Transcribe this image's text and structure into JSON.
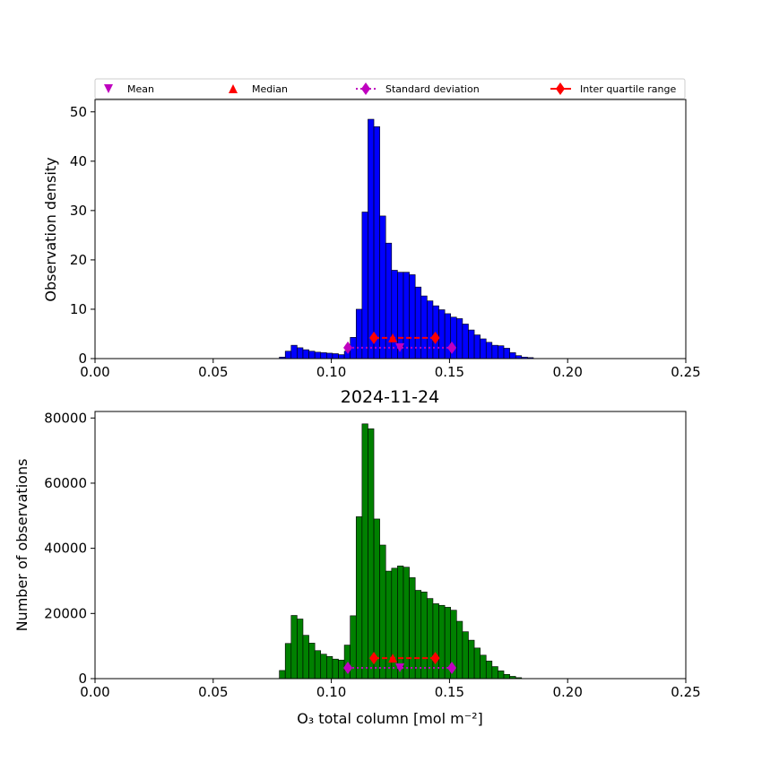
{
  "legend": {
    "items": [
      {
        "label": "Mean",
        "marker": "triangle-down",
        "color": "#bf00bf"
      },
      {
        "label": "Median",
        "marker": "triangle-up",
        "color": "#ff0000"
      },
      {
        "label": "Standard deviation",
        "marker": "diamond-dotted",
        "color": "#bf00bf"
      },
      {
        "label": "Inter quartile range",
        "marker": "diamond-dashed",
        "color": "#ff0000"
      }
    ]
  },
  "chart_data": [
    {
      "type": "bar",
      "title": "",
      "xlabel": "",
      "ylabel": "Observation density",
      "xlim": [
        0,
        0.25
      ],
      "ylim": [
        0,
        52.5
      ],
      "xticks": [
        "0.00",
        "0.05",
        "0.10",
        "0.15",
        "0.20",
        "0.25"
      ],
      "yticks": [
        "0",
        "10",
        "20",
        "30",
        "40",
        "50"
      ],
      "bar_color": "#0000ff",
      "bin_start": 0.078,
      "bin_width": 0.0025,
      "values": [
        0.3,
        1.5,
        2.7,
        2.2,
        1.8,
        1.5,
        1.3,
        1.2,
        1.1,
        1.0,
        0.8,
        1.5,
        4.3,
        10.0,
        29.7,
        48.5,
        47.0,
        28.9,
        23.4,
        17.9,
        17.5,
        17.5,
        17.0,
        14.5,
        12.7,
        11.7,
        10.7,
        9.9,
        9.1,
        8.4,
        8.1,
        7.0,
        5.8,
        4.8,
        4.0,
        3.3,
        2.7,
        2.6,
        2.1,
        1.2,
        0.6,
        0.3,
        0.2
      ],
      "stats": {
        "mean": 0.129,
        "median": 0.126,
        "std_range": [
          0.107,
          0.151
        ],
        "iqr": [
          0.118,
          0.144
        ]
      },
      "stat_y": {
        "mean": 2.2,
        "median": 4.2,
        "std": 2.2,
        "iqr": 4.2
      }
    },
    {
      "type": "bar",
      "title": "2024-11-24",
      "xlabel": "O₃ total column [mol m⁻²]",
      "ylabel": "Number of observations",
      "xlim": [
        0,
        0.25
      ],
      "ylim": [
        0,
        82000
      ],
      "xticks": [
        "0.00",
        "0.05",
        "0.10",
        "0.15",
        "0.20",
        "0.25"
      ],
      "yticks": [
        "0",
        "20000",
        "40000",
        "60000",
        "80000"
      ],
      "bar_color": "#008000",
      "bin_start": 0.078,
      "bin_width": 0.0025,
      "values": [
        2500,
        10800,
        19400,
        18300,
        13300,
        10900,
        8600,
        7500,
        6800,
        6000,
        5700,
        10300,
        19300,
        49700,
        78200,
        76700,
        49000,
        41000,
        33000,
        33900,
        34600,
        34200,
        31000,
        27100,
        26600,
        24600,
        23000,
        22500,
        21900,
        21000,
        17600,
        14400,
        11800,
        9400,
        7200,
        5400,
        3700,
        2400,
        1300,
        700,
        300
      ],
      "stats": {
        "mean": 0.129,
        "median": 0.126,
        "std_range": [
          0.107,
          0.151
        ],
        "iqr": [
          0.118,
          0.144
        ]
      },
      "stat_y": {
        "mean": 3300,
        "median": 6300,
        "std": 3300,
        "iqr": 6300
      }
    }
  ]
}
